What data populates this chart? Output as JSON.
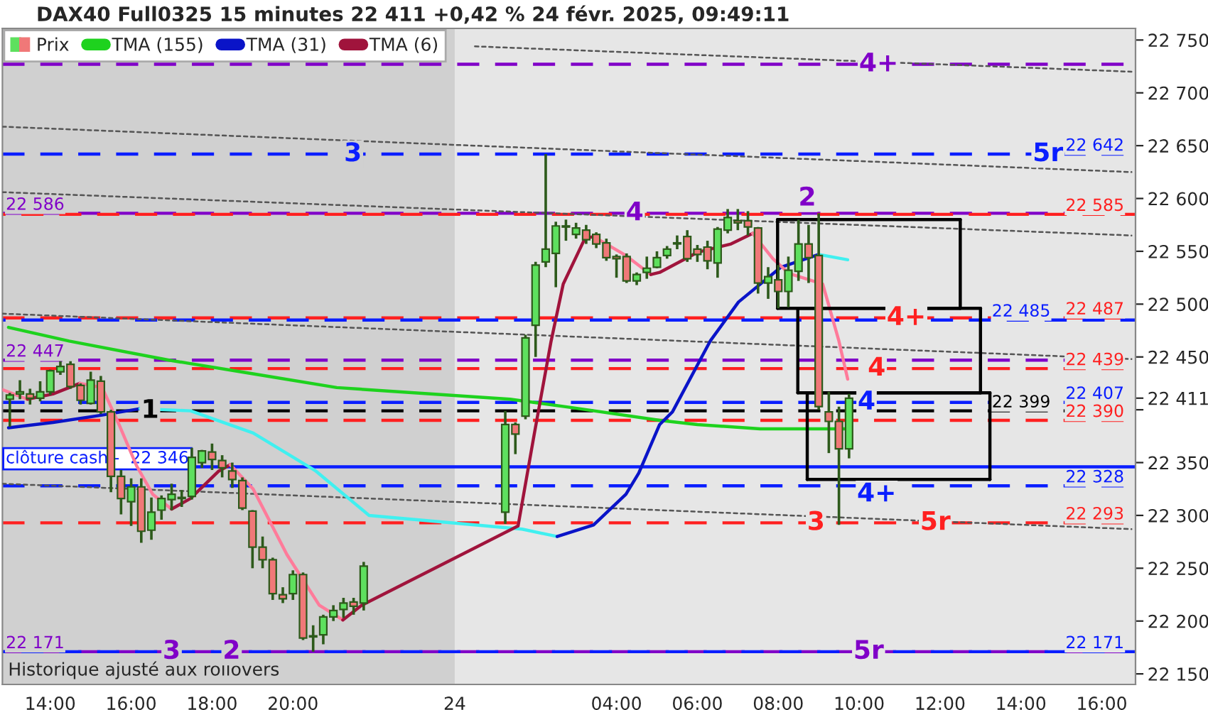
{
  "chart_data": {
    "type": "candlestick",
    "title": "DAX40 Full0325 15 minutes 22 411 +0,42 % 24 févr. 2025, 09:49:11",
    "xlim": [
      "2025-02-23T12:49",
      "2025-02-24T16:50"
    ],
    "xticks": [
      {
        "value": "2025-02-23T14:00",
        "label": "14:00"
      },
      {
        "value": "2025-02-23T16:00",
        "label": "16:00"
      },
      {
        "value": "2025-02-23T18:00",
        "label": "18:00"
      },
      {
        "value": "2025-02-23T20:00",
        "label": "20:00"
      },
      {
        "value": "2025-02-24T00:00",
        "label": "24"
      },
      {
        "value": "2025-02-24T04:00",
        "label": "04:00"
      },
      {
        "value": "2025-02-24T06:00",
        "label": "06:00"
      },
      {
        "value": "2025-02-24T08:00",
        "label": "08:00"
      },
      {
        "value": "2025-02-24T10:00",
        "label": "10:00"
      },
      {
        "value": "2025-02-24T12:00",
        "label": "12:00"
      },
      {
        "value": "2025-02-24T14:00",
        "label": "14:00"
      },
      {
        "value": "2025-02-24T16:00",
        "label": "16:00"
      }
    ],
    "ylim": [
      22140,
      22761
    ],
    "yticks": [
      {
        "value": 22150,
        "label": "22 150"
      },
      {
        "value": 22200,
        "label": "22 200"
      },
      {
        "value": 22250,
        "label": "22 250"
      },
      {
        "value": 22300,
        "label": "22 300"
      },
      {
        "value": 22350,
        "label": "22 350"
      },
      {
        "value": 22400,
        "label": null
      },
      {
        "value": 22411,
        "label": "22 411"
      },
      {
        "value": 22450,
        "label": "22 450"
      },
      {
        "value": 22500,
        "label": "22 500"
      },
      {
        "value": 22550,
        "label": "22 550"
      },
      {
        "value": 22600,
        "label": "22 600"
      },
      {
        "value": 22650,
        "label": "22 650"
      },
      {
        "value": 22700,
        "label": "22 700"
      },
      {
        "value": 22750,
        "label": "22 750"
      }
    ],
    "grid": false,
    "legend": "top left",
    "bands": [
      {
        "axis": "x",
        "from": "2025-02-23T12:49",
        "to": "2025-02-24T00:00",
        "color": "#d0d0d0"
      }
    ],
    "series": [
      {
        "name": "Prix",
        "x": [
          "2025-02-23T13:00",
          "2025-02-23T13:15",
          "2025-02-23T13:30",
          "2025-02-23T13:45",
          "2025-02-23T14:00",
          "2025-02-23T14:15",
          "2025-02-23T14:30",
          "2025-02-23T14:45",
          "2025-02-23T15:00",
          "2025-02-23T15:15",
          "2025-02-23T15:30",
          "2025-02-23T15:45",
          "2025-02-23T16:00",
          "2025-02-23T16:15",
          "2025-02-23T16:30",
          "2025-02-23T16:45",
          "2025-02-23T17:00",
          "2025-02-23T17:15",
          "2025-02-23T17:30",
          "2025-02-23T17:45",
          "2025-02-23T18:00",
          "2025-02-23T18:15",
          "2025-02-23T18:30",
          "2025-02-23T18:45",
          "2025-02-23T19:00",
          "2025-02-23T19:15",
          "2025-02-23T19:30",
          "2025-02-23T19:45",
          "2025-02-23T20:00",
          "2025-02-23T20:15",
          "2025-02-23T20:30",
          "2025-02-23T20:45",
          "2025-02-23T21:00",
          "2025-02-23T21:15",
          "2025-02-23T21:30",
          "2025-02-23T21:45",
          "2025-02-24T01:15",
          "2025-02-24T01:30",
          "2025-02-24T01:45",
          "2025-02-24T02:00",
          "2025-02-24T02:15",
          "2025-02-24T02:30",
          "2025-02-24T02:45",
          "2025-02-24T03:00",
          "2025-02-24T03:15",
          "2025-02-24T03:30",
          "2025-02-24T03:45",
          "2025-02-24T04:00",
          "2025-02-24T04:15",
          "2025-02-24T04:30",
          "2025-02-24T04:45",
          "2025-02-24T05:00",
          "2025-02-24T05:15",
          "2025-02-24T05:30",
          "2025-02-24T05:45",
          "2025-02-24T06:00",
          "2025-02-24T06:15",
          "2025-02-24T06:30",
          "2025-02-24T06:45",
          "2025-02-24T07:00",
          "2025-02-24T07:15",
          "2025-02-24T07:30",
          "2025-02-24T07:45",
          "2025-02-24T08:00",
          "2025-02-24T08:15",
          "2025-02-24T08:30",
          "2025-02-24T08:45",
          "2025-02-24T09:00",
          "2025-02-24T09:15",
          "2025-02-24T09:30",
          "2025-02-24T09:45"
        ],
        "ohlc": [
          [
            22410,
            22416,
            22384,
            22414
          ],
          [
            22415,
            22428,
            22410,
            22417
          ],
          [
            22415,
            22420,
            22405,
            22411
          ],
          [
            22411,
            22427,
            22408,
            22417
          ],
          [
            22417,
            22438,
            22414,
            22437
          ],
          [
            22436,
            22446,
            22433,
            22441
          ],
          [
            22443,
            22446,
            22420,
            22422
          ],
          [
            22423,
            22425,
            22405,
            22409
          ],
          [
            22406,
            22436,
            22405,
            22428
          ],
          [
            22427,
            22432,
            22396,
            22398
          ],
          [
            22398,
            22400,
            22322,
            22337
          ],
          [
            22337,
            22343,
            22301,
            22316
          ],
          [
            22313,
            22335,
            22290,
            22327
          ],
          [
            22327,
            22335,
            22274,
            22285
          ],
          [
            22286,
            22317,
            22277,
            22303
          ],
          [
            22305,
            22319,
            22296,
            22316
          ],
          [
            22315,
            22330,
            22305,
            22320
          ],
          [
            22316,
            22324,
            22308,
            22317
          ],
          [
            22318,
            22364,
            22315,
            22355
          ],
          [
            22350,
            22362,
            22345,
            22361
          ],
          [
            22360,
            22368,
            22343,
            22353
          ],
          [
            22352,
            22357,
            22336,
            22345
          ],
          [
            22342,
            22350,
            22326,
            22334
          ],
          [
            22333,
            22336,
            22305,
            22307
          ],
          [
            22304,
            22305,
            22250,
            22270
          ],
          [
            22270,
            22280,
            22250,
            22258
          ],
          [
            22258,
            22260,
            22220,
            22226
          ],
          [
            22225,
            22232,
            22217,
            22221
          ],
          [
            22226,
            22248,
            22220,
            22244
          ],
          [
            22244,
            22246,
            22182,
            22184
          ],
          [
            22185,
            22196,
            22171,
            22186
          ],
          [
            22187,
            22206,
            22178,
            22204
          ],
          [
            22204,
            22215,
            22200,
            22210
          ],
          [
            22211,
            22222,
            22203,
            22217
          ],
          [
            22218,
            22222,
            22206,
            22214
          ],
          [
            22217,
            22256,
            22210,
            22252
          ],
          [
            22303,
            22399,
            22292,
            22386
          ],
          [
            22386,
            22388,
            22358,
            22377
          ],
          [
            22394,
            22471,
            22391,
            22468
          ],
          [
            22480,
            22540,
            22450,
            22537
          ],
          [
            22540,
            22642,
            22535,
            22552
          ],
          [
            22548,
            22578,
            22516,
            22574
          ],
          [
            22573,
            22580,
            22560,
            22574
          ],
          [
            22566,
            22577,
            22562,
            22572
          ],
          [
            22570,
            22575,
            22557,
            22561
          ],
          [
            22566,
            22568,
            22553,
            22557
          ],
          [
            22558,
            22562,
            22541,
            22544
          ],
          [
            22545,
            22547,
            22525,
            22543
          ],
          [
            22545,
            22548,
            22520,
            22522
          ],
          [
            22522,
            22530,
            22518,
            22528
          ],
          [
            22530,
            22545,
            22524,
            22534
          ],
          [
            22535,
            22550,
            22534,
            22544
          ],
          [
            22546,
            22555,
            22543,
            22552
          ],
          [
            22557,
            22565,
            22552,
            22558
          ],
          [
            22564,
            22570,
            22540,
            22543
          ],
          [
            22552,
            22556,
            22540,
            22547
          ],
          [
            22554,
            22560,
            22533,
            22541
          ],
          [
            22539,
            22573,
            22525,
            22571
          ],
          [
            22570,
            22590,
            22567,
            22582
          ],
          [
            22579,
            22590,
            22570,
            22577
          ],
          [
            22579,
            22588,
            22565,
            22573
          ],
          [
            22572,
            22573,
            22510,
            22520
          ],
          [
            22520,
            22535,
            22505,
            22526
          ],
          [
            22523,
            22537,
            22496,
            22512
          ],
          [
            22512,
            22545,
            22497,
            22532
          ],
          [
            22531,
            22580,
            22522,
            22557
          ],
          [
            22557,
            22575,
            22520,
            22544
          ],
          [
            22546,
            22586,
            22400,
            22403
          ],
          [
            22398,
            22417,
            22359,
            22389
          ],
          [
            22389,
            22403,
            22291,
            22363
          ],
          [
            22363,
            22415,
            22354,
            22411
          ]
        ],
        "colors": [
          "#5ee05e",
          "#5ee05e",
          "#f07878",
          "#5ee05e",
          "#5ee05e",
          "#5ee05e",
          "#f07878",
          "#f07878",
          "#5ee05e",
          "#f07878",
          "#f07878",
          "#f07878",
          "#5ee05e",
          "#f07878",
          "#5ee05e",
          "#5ee05e",
          "#5ee05e",
          "#5ee05e",
          "#5ee05e",
          "#5ee05e",
          "#f07878",
          "#f07878",
          "#f07878",
          "#f07878",
          "#f07878",
          "#f07878",
          "#f07878",
          "#f07878",
          "#5ee05e",
          "#f07878",
          "#5ee05e",
          "#5ee05e",
          "#5ee05e",
          "#5ee05e",
          "#f07878",
          "#5ee05e",
          "#5ee05e",
          "#f07878",
          "#5ee05e",
          "#5ee05e",
          "#5ee05e",
          "#5ee05e",
          "#5ee05e",
          "#5ee05e",
          "#f07878",
          "#f07878",
          "#f07878",
          "#f07878",
          "#f07878",
          "#5ee05e",
          "#5ee05e",
          "#5ee05e",
          "#5ee05e",
          "#5ee05e",
          "#f07878",
          "#f07878",
          "#f07878",
          "#5ee05e",
          "#5ee05e",
          "#f07878",
          "#f07878",
          "#f07878",
          "#5ee05e",
          "#f07878",
          "#5ee05e",
          "#5ee05e",
          "#f07878",
          "#f07878",
          "#f07878",
          "#f07878",
          "#5ee05e"
        ]
      },
      {
        "name": "TMA (155)",
        "type": "line",
        "color": "#1ed21e",
        "x": [
          "2025-02-23T12:58",
          "2025-02-23T14:28",
          "2025-02-23T16:56",
          "2025-02-23T19:01",
          "2025-02-23T21:05",
          "2025-02-24T01:22",
          "2025-02-24T02:54",
          "2025-02-24T05:04",
          "2025-02-24T06:00",
          "2025-02-24T07:33",
          "2025-02-24T09:43"
        ],
        "values": [
          22478,
          22465,
          22447,
          22434,
          22421,
          22410,
          22402,
          22390,
          22386,
          22382,
          22382
        ]
      },
      {
        "name": "TMA (31)",
        "type": "line",
        "color": "#0a14c8",
        "x": [
          "2025-02-23T12:58",
          "2025-02-23T14:04",
          "2025-02-23T15:17",
          "2025-02-23T16:13"
        ],
        "values": [
          22383,
          22388,
          22395,
          22401
        ]
      },
      {
        "type": "line",
        "color": "#40f0f0",
        "x": [
          "2025-02-23T16:13",
          "2025-02-23T17:28",
          "2025-02-23T19:01",
          "2025-02-23T20:34",
          "2025-02-23T21:53",
          "2025-02-24T01:40",
          "2025-02-24T02:32"
        ],
        "values": [
          22401,
          22399,
          22378,
          22342,
          22300,
          22287,
          22280
        ]
      },
      {
        "type": "line",
        "color": "#0a14c8",
        "x": [
          "2025-02-24T02:32",
          "2025-02-24T03:26",
          "2025-02-24T04:14",
          "2025-02-24T04:33",
          "2025-02-24T05:04",
          "2025-02-24T05:23",
          "2025-02-24T06:19",
          "2025-02-24T07:01",
          "2025-02-24T08:04",
          "2025-02-24T09:00"
        ],
        "values": [
          22280,
          22291,
          22320,
          22340,
          22386,
          22398,
          22465,
          22502,
          22535,
          22547
        ]
      },
      {
        "type": "line",
        "color": "#40f0f0",
        "x": [
          "2025-02-24T09:00",
          "2025-02-24T09:43"
        ],
        "values": [
          22547,
          22542
        ]
      },
      {
        "type": "line",
        "color": "#ff7b9a",
        "x": [
          "2025-02-23T12:49",
          "2025-02-23T13:26"
        ],
        "values": [
          22419,
          22410
        ]
      },
      {
        "name": "TMA (6)",
        "type": "line",
        "color": "#a0143c",
        "x": [
          "2025-02-23T13:26",
          "2025-02-23T14:04",
          "2025-02-23T14:44"
        ],
        "values": [
          22410,
          22415,
          22425
        ]
      },
      {
        "type": "line",
        "color": "#ff7b9a",
        "x": [
          "2025-02-23T14:44",
          "2025-02-23T15:17",
          "2025-02-23T15:42",
          "2025-02-23T16:08",
          "2025-02-23T16:32",
          "2025-02-23T17:00"
        ],
        "values": [
          22425,
          22421,
          22386,
          22347,
          22320,
          22306
        ]
      },
      {
        "type": "line",
        "color": "#a0143c",
        "x": [
          "2025-02-23T17:00",
          "2025-02-23T17:28",
          "2025-02-23T18:10",
          "2025-02-23T18:27"
        ],
        "values": [
          22306,
          22316,
          22342,
          22348
        ]
      },
      {
        "type": "line",
        "color": "#ff7b9a",
        "x": [
          "2025-02-23T18:27",
          "2025-02-23T19:01",
          "2025-02-23T19:51",
          "2025-02-23T20:39",
          "2025-02-23T21:14"
        ],
        "values": [
          22348,
          22325,
          22263,
          22215,
          22201
        ]
      },
      {
        "type": "line",
        "color": "#a0143c",
        "x": [
          "2025-02-23T21:14",
          "2025-02-23T21:42",
          "2025-02-24T01:34",
          "2025-02-24T01:58",
          "2025-02-24T02:23",
          "2025-02-24T02:41",
          "2025-02-24T03:13",
          "2025-02-24T03:26"
        ],
        "values": [
          22201,
          22215,
          22290,
          22377,
          22465,
          22519,
          22562,
          22564
        ]
      },
      {
        "type": "line",
        "color": "#ff7b9a",
        "x": [
          "2025-02-24T03:26",
          "2025-02-24T04:14",
          "2025-02-24T04:51"
        ],
        "values": [
          22564,
          22546,
          22528
        ]
      },
      {
        "type": "line",
        "color": "#a0143c",
        "x": [
          "2025-02-24T04:51",
          "2025-02-24T05:04",
          "2025-02-24T06:00",
          "2025-02-24T06:50",
          "2025-02-24T07:22"
        ],
        "values": [
          22528,
          22530,
          22549,
          22557,
          22567
        ]
      },
      {
        "type": "line",
        "color": "#ff7b9a",
        "x": [
          "2025-02-24T07:22",
          "2025-02-24T07:52",
          "2025-02-24T08:16",
          "2025-02-24T09:06",
          "2025-02-24T09:30",
          "2025-02-24T09:43"
        ],
        "values": [
          22567,
          22543,
          22529,
          22519,
          22465,
          22429
        ]
      },
      {
        "type": "line",
        "color": "#555555",
        "line_style": "dotted",
        "x": [
          "2025-02-24T00:30",
          "2025-02-24T16:44"
        ],
        "values": [
          22744,
          22720
        ]
      },
      {
        "type": "line",
        "color": "#555555",
        "line_style": "dotted",
        "x": [
          "2025-02-23T12:49",
          "2025-02-24T16:44"
        ],
        "values": [
          22668,
          22625
        ]
      },
      {
        "type": "line",
        "color": "#555555",
        "line_style": "dotted",
        "x": [
          "2025-02-23T12:49",
          "2025-02-24T16:44"
        ],
        "values": [
          22606,
          22565
        ]
      },
      {
        "type": "line",
        "color": "#555555",
        "line_style": "dotted",
        "x": [
          "2025-02-23T12:49",
          "2025-02-24T16:44"
        ],
        "values": [
          22491,
          22448
        ]
      },
      {
        "type": "line",
        "color": "#555555",
        "line_style": "dotted",
        "x": [
          "2025-02-23T12:49",
          "2025-02-24T16:44"
        ],
        "values": [
          22330,
          22287
        ]
      },
      {
        "type": "line",
        "color": "#000000",
        "x": [
          "2025-02-24T07:59",
          "2025-02-24T12:30"
        ],
        "values": [
          22580,
          22580
        ]
      },
      {
        "type": "line",
        "color": "#000000",
        "x": [
          "2025-02-24T07:59",
          "2025-02-24T12:30"
        ],
        "values": [
          22496,
          22496
        ]
      },
      {
        "type": "line",
        "color": "#000000",
        "x": [
          "2025-02-24T07:59",
          "2025-02-24T07:59"
        ],
        "values": [
          22580,
          22496
        ]
      },
      {
        "type": "line",
        "color": "#000000",
        "x": [
          "2025-02-24T12:30",
          "2025-02-24T12:30"
        ],
        "values": [
          22580,
          22496
        ]
      },
      {
        "type": "line",
        "color": "#000000",
        "x": [
          "2025-02-24T08:29",
          "2025-02-24T13:00"
        ],
        "values": [
          22496,
          22496
        ]
      },
      {
        "type": "line",
        "color": "#000000",
        "x": [
          "2025-02-24T08:29",
          "2025-02-24T13:00"
        ],
        "values": [
          22416,
          22416
        ]
      },
      {
        "type": "line",
        "color": "#000000",
        "x": [
          "2025-02-24T08:29",
          "2025-02-24T08:29"
        ],
        "values": [
          22496,
          22416
        ]
      },
      {
        "type": "line",
        "color": "#000000",
        "x": [
          "2025-02-24T13:00",
          "2025-02-24T13:00"
        ],
        "values": [
          22496,
          22416
        ]
      },
      {
        "type": "line",
        "color": "#000000",
        "x": [
          "2025-02-24T08:43",
          "2025-02-24T13:14"
        ],
        "values": [
          22416,
          22416
        ]
      },
      {
        "type": "line",
        "color": "#000000",
        "x": [
          "2025-02-24T08:43",
          "2025-02-24T13:14"
        ],
        "values": [
          22334,
          22334
        ]
      },
      {
        "type": "line",
        "color": "#000000",
        "x": [
          "2025-02-24T08:43",
          "2025-02-24T08:43"
        ],
        "values": [
          22416,
          22334
        ]
      },
      {
        "type": "line",
        "color": "#000000",
        "x": [
          "2025-02-24T13:14",
          "2025-02-24T13:14"
        ],
        "values": [
          22416,
          22334
        ]
      }
    ],
    "ref_lines": [
      {
        "axis": "y",
        "value": 22727,
        "color": "#8000c8",
        "line_style": "dashed"
      },
      {
        "axis": "y",
        "value": 22642,
        "label": "22 642",
        "color": "#0a1eff",
        "line_style": "dashed"
      },
      {
        "axis": "y",
        "value": 22586,
        "color": "#8000c8",
        "line_style": "dashed"
      },
      {
        "axis": "y",
        "value": 22585,
        "label": "22 585",
        "color": "#ff2020",
        "line_style": "dashed"
      },
      {
        "axis": "y",
        "value": 22487,
        "label": "22 487",
        "color": "#ff2020",
        "line_style": "dashed"
      },
      {
        "axis": "y",
        "value": 22485,
        "label": "22 485",
        "color": "#0a1eff",
        "line_style": "dashed"
      },
      {
        "axis": "y",
        "value": 22447,
        "color": "#8000c8",
        "line_style": "dashed"
      },
      {
        "axis": "y",
        "value": 22439,
        "label": "22 439",
        "color": "#ff2020",
        "line_style": "dashed"
      },
      {
        "axis": "y",
        "value": 22407,
        "label": "22 407",
        "color": "#0a1eff",
        "line_style": "dashed"
      },
      {
        "axis": "y",
        "value": 22399,
        "label": "22 399",
        "color": "#000000",
        "line_style": "dashed"
      },
      {
        "axis": "y",
        "value": 22390,
        "label": "22 390",
        "color": "#ff2020",
        "line_style": "dashed"
      },
      {
        "axis": "y",
        "value": 22346,
        "color": "#0a1eff",
        "line_style": "solid"
      },
      {
        "axis": "y",
        "value": 22328,
        "label": "22 328",
        "color": "#0a1eff",
        "line_style": "dashed"
      },
      {
        "axis": "y",
        "value": 22293,
        "label": "22 293",
        "color": "#ff2020",
        "line_style": "dashed"
      },
      {
        "axis": "y",
        "value": 22171,
        "color": "#8000c8",
        "line_style": "dashed"
      },
      {
        "axis": "y",
        "value": 22171,
        "label": "22 171",
        "color": "#0a1eff",
        "line_style": "dashed"
      }
    ],
    "annotations": [
      {
        "text": "4+",
        "x": "2025-02-24T10:29",
        "y": 22727
      },
      {
        "text": "3",
        "x": "2025-02-23T21:29",
        "y": 22642
      },
      {
        "text": "5r",
        "x": "2025-02-24T14:40",
        "y": 22642
      },
      {
        "text": "22 586",
        "x": "2025-02-23T12:54",
        "y": 22586
      },
      {
        "text": "4",
        "x": "2025-02-24T04:27",
        "y": 22586
      },
      {
        "text": "2",
        "x": "2025-02-24T08:43",
        "y": 22600
      },
      {
        "text": "4+",
        "x": "2025-02-24T11:10",
        "y": 22487
      },
      {
        "text": "22 447",
        "x": "2025-02-23T12:54",
        "y": 22447
      },
      {
        "text": "4",
        "x": "2025-02-24T10:26",
        "y": 22439
      },
      {
        "text": "1",
        "x": "2025-02-23T16:28",
        "y": 22399
      },
      {
        "text": "4",
        "x": "2025-02-24T10:11",
        "y": 22407
      },
      {
        "text": "clôture cash -  22 346",
        "x": "2025-02-23T12:54",
        "y": 22346
      },
      {
        "text": "4+",
        "x": "2025-02-24T10:26",
        "y": 22320
      },
      {
        "text": "3",
        "x": "2025-02-24T08:56",
        "y": 22293
      },
      {
        "text": "5r",
        "x": "2025-02-24T11:53",
        "y": 22293
      },
      {
        "text": "22 171",
        "x": "2025-02-23T12:54",
        "y": 22171
      },
      {
        "text": "3",
        "x": "2025-02-23T17:00",
        "y": 22171
      },
      {
        "text": "2",
        "x": "2025-02-23T18:29",
        "y": 22171
      },
      {
        "text": "5r",
        "x": "2025-02-24T10:14",
        "y": 22171
      },
      "Historique ajusté aux rollovers"
    ]
  }
}
